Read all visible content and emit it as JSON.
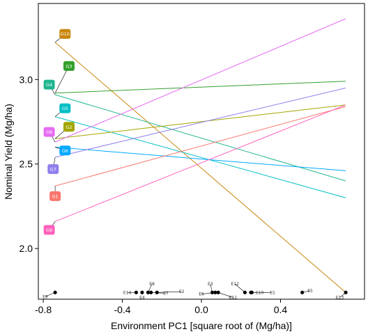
{
  "chart_data": {
    "type": "line",
    "title": "",
    "xlabel": "Environment PC1 [square root of  (Mg/ha)]",
    "ylabel": "Nominal Yield (Mg/ha)",
    "xlim": [
      -0.825,
      0.825
    ],
    "ylim": [
      1.7,
      3.45
    ],
    "xticks": [
      -0.8,
      -0.4,
      0.0,
      0.4
    ],
    "xtick_labels": [
      "-0.8",
      "-0.4",
      "0.0",
      "0.4"
    ],
    "yticks": [
      2.0,
      2.5,
      3.0
    ],
    "ytick_labels": [
      "2.0",
      "2.5",
      "3.0"
    ],
    "grid": false,
    "genotypes": [
      {
        "name": "G10",
        "color": "#C8860A",
        "label_at": [
          -0.69,
          3.27
        ],
        "x": [
          -0.74,
          0.73
        ],
        "y": [
          3.22,
          1.74
        ]
      },
      {
        "name": "G3",
        "color": "#33A02C",
        "label_at": [
          -0.67,
          3.08
        ],
        "x": [
          -0.74,
          0.73
        ],
        "y": [
          2.92,
          2.99
        ]
      },
      {
        "name": "G4",
        "color": "#1FB58F",
        "label_at": [
          -0.77,
          2.97
        ],
        "x": [
          -0.74,
          0.73
        ],
        "y": [
          2.91,
          2.4
        ]
      },
      {
        "name": "G5",
        "color": "#00BFC4",
        "label_at": [
          -0.69,
          2.83
        ],
        "x": [
          -0.74,
          0.73
        ],
        "y": [
          2.78,
          2.3
        ]
      },
      {
        "name": "G2",
        "color": "#A3A500",
        "label_at": [
          -0.67,
          2.72
        ],
        "x": [
          -0.74,
          0.73
        ],
        "y": [
          2.65,
          2.85
        ]
      },
      {
        "name": "G8",
        "color": "#E76BF3",
        "label_at": [
          -0.77,
          2.69
        ],
        "x": [
          -0.74,
          0.73
        ],
        "y": [
          2.63,
          3.36
        ]
      },
      {
        "name": "G6",
        "color": "#00A9FF",
        "label_at": [
          -0.69,
          2.58
        ],
        "x": [
          -0.74,
          0.73
        ],
        "y": [
          2.6,
          2.46
        ]
      },
      {
        "name": "G7",
        "color": "#8F7FEE",
        "label_at": [
          -0.75,
          2.47
        ],
        "x": [
          -0.74,
          0.73
        ],
        "y": [
          2.54,
          2.95
        ]
      },
      {
        "name": "G1",
        "color": "#F8766D",
        "label_at": [
          -0.74,
          2.31
        ],
        "x": [
          -0.74,
          0.73
        ],
        "y": [
          2.37,
          2.84
        ]
      },
      {
        "name": "G9",
        "color": "#FF62BC",
        "label_at": [
          -0.77,
          2.11
        ],
        "x": [
          -0.74,
          0.73
        ],
        "y": [
          2.16,
          2.85
        ]
      }
    ],
    "environments": [
      {
        "name": "E9",
        "x": -0.74,
        "y": 1.74,
        "label_x": -0.79,
        "label_y": 1.715
      },
      {
        "name": "E14",
        "x": -0.33,
        "y": 1.74,
        "label_x": -0.375,
        "label_y": 1.74
      },
      {
        "name": "E4",
        "x": -0.3,
        "y": 1.74,
        "label_x": -0.3,
        "label_y": 1.71
      },
      {
        "name": "E8",
        "x": -0.27,
        "y": 1.74,
        "label_x": -0.25,
        "label_y": 1.79
      },
      {
        "name": "E7",
        "x": -0.255,
        "y": 1.74,
        "label_x": -0.18,
        "label_y": 1.735
      },
      {
        "name": "E2",
        "x": -0.225,
        "y": 1.74,
        "label_x": -0.1,
        "label_y": 1.745
      },
      {
        "name": "E3",
        "x": 0.055,
        "y": 1.74,
        "label_x": 0.045,
        "label_y": 1.79
      },
      {
        "name": "E6",
        "x": 0.07,
        "y": 1.74,
        "label_x": 0.0,
        "label_y": 1.73
      },
      {
        "name": "E11",
        "x": 0.085,
        "y": 1.74,
        "label_x": 0.16,
        "label_y": 1.71
      },
      {
        "name": "E12",
        "x": 0.22,
        "y": 1.74,
        "label_x": 0.17,
        "label_y": 1.79
      },
      {
        "name": "E10",
        "x": 0.25,
        "y": 1.74,
        "label_x": 0.295,
        "label_y": 1.74
      },
      {
        "name": "E1",
        "x": 0.255,
        "y": 1.74,
        "label_x": 0.36,
        "label_y": 1.74
      },
      {
        "name": "E5",
        "x": 0.51,
        "y": 1.74,
        "label_x": 0.55,
        "label_y": 1.75
      },
      {
        "name": "E13",
        "x": 0.73,
        "y": 1.74,
        "label_x": 0.7,
        "label_y": 1.71
      }
    ]
  }
}
